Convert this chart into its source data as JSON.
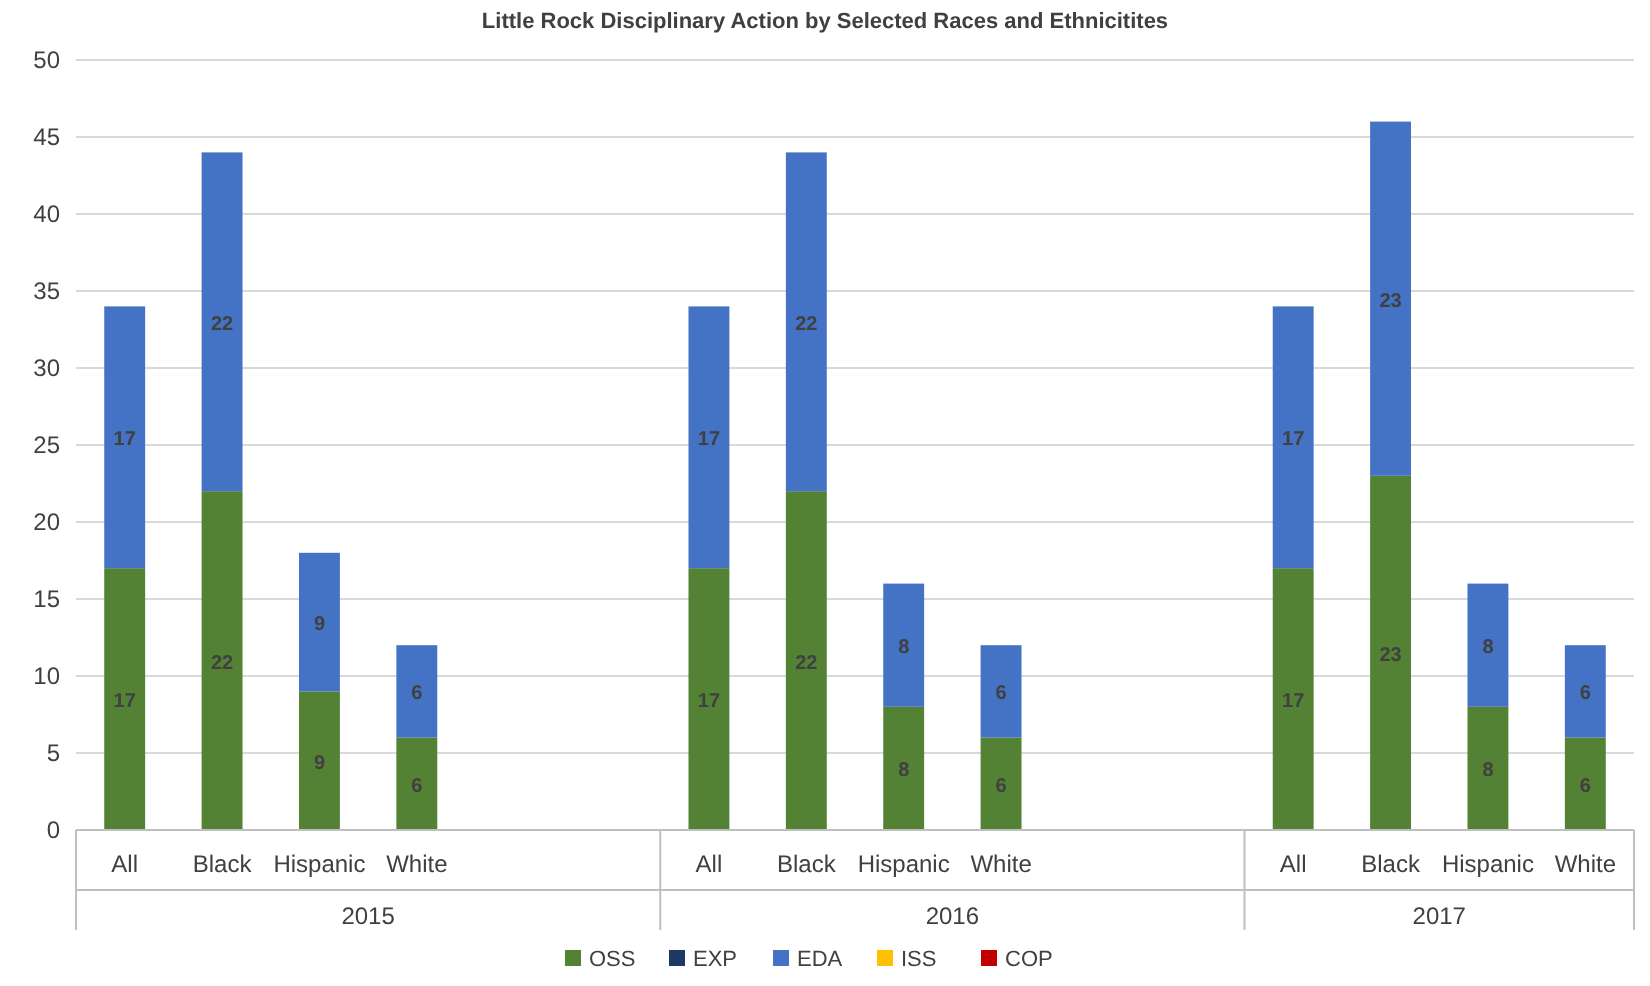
{
  "chart_data": {
    "type": "bar",
    "title": "Little Rock Disciplinary Action by Selected Races and Ethnicitites",
    "categories": [
      "All",
      "Black",
      "Hispanic",
      "White",
      null,
      null,
      "All",
      "Black",
      "Hispanic",
      "White",
      null,
      null,
      "All",
      "Black",
      "Hispanic",
      "White"
    ],
    "annotations": [
      "2015",
      "2016",
      "2017"
    ],
    "stacked": true,
    "data_labels": true,
    "grid": "y",
    "legend": "bottom",
    "ylim": [
      0,
      50
    ],
    "yticks": [
      0,
      5,
      10,
      15,
      20,
      25,
      30,
      35,
      40,
      45,
      50
    ],
    "series": [
      {
        "name": "OSS",
        "color": "#548235",
        "values": [
          17,
          22,
          9,
          6,
          null,
          null,
          17,
          22,
          8,
          6,
          null,
          null,
          17,
          23,
          8,
          6
        ]
      },
      {
        "name": "EXP",
        "color": "#203864",
        "values": [
          null,
          null,
          null,
          null,
          null,
          null,
          null,
          null,
          null,
          null,
          null,
          null,
          null,
          null,
          null,
          null
        ]
      },
      {
        "name": "EDA",
        "color": "#4472c4",
        "values": [
          17,
          22,
          9,
          6,
          null,
          null,
          17,
          22,
          8,
          6,
          null,
          null,
          17,
          23,
          8,
          6
        ]
      },
      {
        "name": "ISS",
        "color": "#ffc000",
        "values": [
          null,
          null,
          null,
          null,
          null,
          null,
          null,
          null,
          null,
          null,
          null,
          null,
          null,
          null,
          null,
          null
        ]
      },
      {
        "name": "COP",
        "color": "#c00000",
        "values": [
          null,
          null,
          null,
          null,
          null,
          null,
          null,
          null,
          null,
          null,
          null,
          null,
          null,
          null,
          null,
          null
        ]
      }
    ]
  }
}
